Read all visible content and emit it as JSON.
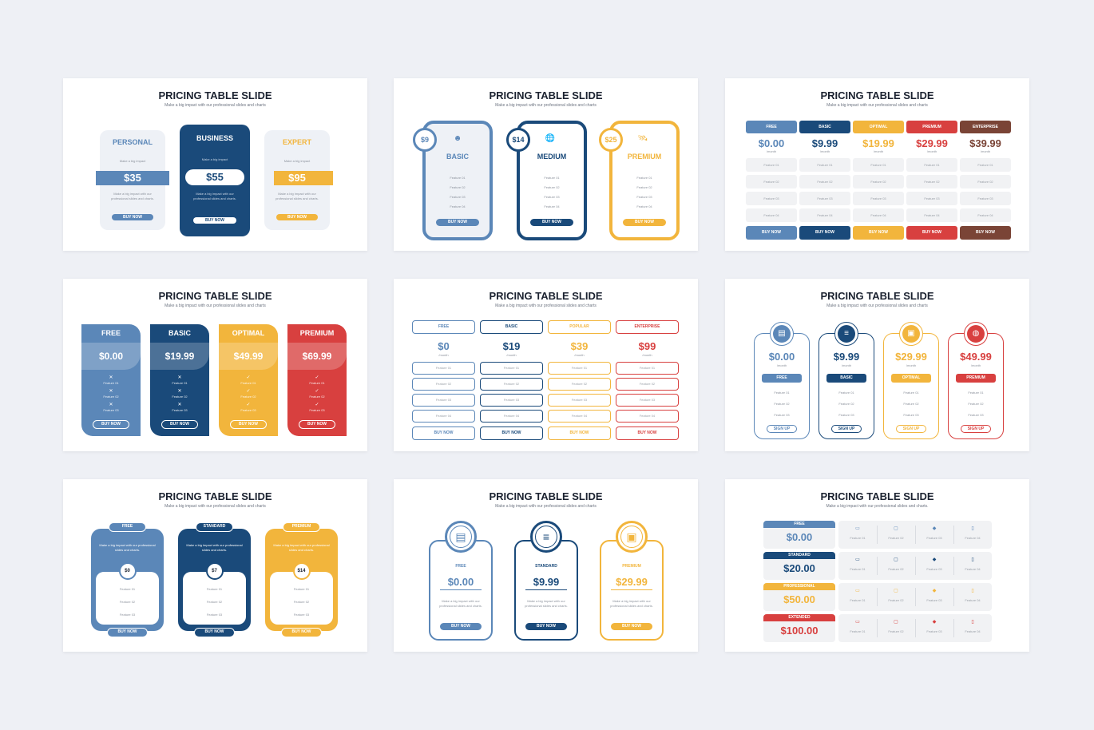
{
  "slide_title": "PRICING TABLE SLIDE",
  "slide_subtitle": "Make a big impact with our professional slides and charts",
  "colors": {
    "blue": "#5b87b8",
    "navy": "#1a4a7a",
    "yellow": "#f2b53c",
    "red": "#d8403f",
    "brown": "#7a4436",
    "lightbg": "#eef0f5"
  },
  "s1": {
    "cards": [
      {
        "name": "PERSONAL",
        "desc": "Make a big impact",
        "price": "$35",
        "text": "Make a big impact with our professional slides and charts.",
        "btn": "BUY NOW"
      },
      {
        "name": "BUSINESS",
        "desc": "Make a big impact",
        "price": "$55",
        "text": "Make a big impact with our professional slides and charts.",
        "btn": "BUY NOW"
      },
      {
        "name": "EXPERT",
        "desc": "Make a big impact",
        "price": "$95",
        "text": "Make a big impact with our professional slides and charts.",
        "btn": "BUY NOW"
      }
    ]
  },
  "s2": {
    "cards": [
      {
        "price": "$9",
        "name": "BASIC",
        "icon": "user-icon",
        "features": [
          "Feature 01",
          "Feature 02",
          "Feature 03",
          "Feature 04"
        ],
        "btn": "BUY NOW"
      },
      {
        "price": "$14",
        "name": "MEDIUM",
        "icon": "globe-icon",
        "features": [
          "Feature 01",
          "Feature 02",
          "Feature 03",
          "Feature 04"
        ],
        "btn": "BUY NOW"
      },
      {
        "price": "$25",
        "name": "PREMIUM",
        "icon": "satellite-icon",
        "features": [
          "Feature 01",
          "Feature 02",
          "Feature 03",
          "Feature 04"
        ],
        "btn": "BUY NOW"
      }
    ]
  },
  "s3": {
    "cols": [
      {
        "name": "FREE",
        "price": "$0.00",
        "per": "/month",
        "features": [
          "Feature 01",
          "Feature 02",
          "Feature 03",
          "Feature 04"
        ],
        "btn": "BUY NOW"
      },
      {
        "name": "BASIC",
        "price": "$9.99",
        "per": "/month",
        "features": [
          "Feature 01",
          "Feature 02",
          "Feature 03",
          "Feature 04"
        ],
        "btn": "BUY NOW"
      },
      {
        "name": "OPTIMAL",
        "price": "$19.99",
        "per": "/month",
        "features": [
          "Feature 01",
          "Feature 02",
          "Feature 03",
          "Feature 04"
        ],
        "btn": "BUY NOW"
      },
      {
        "name": "PREMIUM",
        "price": "$29.99",
        "per": "/month",
        "features": [
          "Feature 01",
          "Feature 02",
          "Feature 03",
          "Feature 04"
        ],
        "btn": "BUY NOW"
      },
      {
        "name": "ENTERPRISE",
        "price": "$39.99",
        "per": "/month",
        "features": [
          "Feature 01",
          "Feature 02",
          "Feature 03",
          "Feature 04"
        ],
        "btn": "BUY NOW"
      }
    ]
  },
  "s4": {
    "cards": [
      {
        "name": "FREE",
        "price": "$0.00",
        "features": [
          "Feature 01",
          "Feature 02",
          "Feature 03"
        ],
        "btn": "BUY NOW"
      },
      {
        "name": "BASIC",
        "price": "$19.99",
        "features": [
          "Feature 01",
          "Feature 02",
          "Feature 03"
        ],
        "btn": "BUY NOW"
      },
      {
        "name": "OPTIMAL",
        "price": "$49.99",
        "features": [
          "Feature 01",
          "Feature 02",
          "Feature 03"
        ],
        "btn": "BUY NOW"
      },
      {
        "name": "PREMIUM",
        "price": "$69.99",
        "features": [
          "Feature 01",
          "Feature 02",
          "Feature 03"
        ],
        "btn": "BUY NOW"
      }
    ]
  },
  "s5": {
    "cols": [
      {
        "name": "FREE",
        "price": "$0",
        "per": "/month",
        "features": [
          "Feature 01",
          "Feature 02",
          "Feature 03",
          "Feature 04"
        ],
        "btn": "BUY NOW"
      },
      {
        "name": "BASIC",
        "price": "$19",
        "per": "/month",
        "features": [
          "Feature 01",
          "Feature 02",
          "Feature 03",
          "Feature 04"
        ],
        "btn": "BUY NOW"
      },
      {
        "name": "POPULAR",
        "price": "$39",
        "per": "/month",
        "features": [
          "Feature 01",
          "Feature 02",
          "Feature 03",
          "Feature 04"
        ],
        "btn": "BUY NOW"
      },
      {
        "name": "ENTERPRISE",
        "price": "$99",
        "per": "/month",
        "features": [
          "Feature 01",
          "Feature 02",
          "Feature 03",
          "Feature 04"
        ],
        "btn": "BUY NOW"
      }
    ]
  },
  "s6": {
    "cards": [
      {
        "price": "$0.00",
        "per": "/month",
        "name": "FREE",
        "features": [
          "Feature 01",
          "Feature 02",
          "Feature 03"
        ],
        "btn": "SIGN UP"
      },
      {
        "price": "$9.99",
        "per": "/month",
        "name": "BASIC",
        "features": [
          "Feature 01",
          "Feature 02",
          "Feature 03"
        ],
        "btn": "SIGN UP"
      },
      {
        "price": "$29.99",
        "per": "/month",
        "name": "OPTIMAL",
        "features": [
          "Feature 01",
          "Feature 02",
          "Feature 03"
        ],
        "btn": "SIGN UP"
      },
      {
        "price": "$49.99",
        "per": "/month",
        "name": "PREMIUM",
        "features": [
          "Feature 01",
          "Feature 02",
          "Feature 03"
        ],
        "btn": "SIGN UP"
      }
    ]
  },
  "s7": {
    "cards": [
      {
        "name": "FREE",
        "text": "Make a big impact with our professional slides and charts.",
        "price": "$0",
        "features": [
          "Feature 01",
          "Feature 02",
          "Feature 03"
        ],
        "btn": "BUY NOW"
      },
      {
        "name": "STANDARD",
        "text": "Make a big impact with our professional slides and charts.",
        "price": "$7",
        "features": [
          "Feature 01",
          "Feature 02",
          "Feature 03"
        ],
        "btn": "BUY NOW"
      },
      {
        "name": "PREMIUM",
        "text": "Make a big impact with our professional slides and charts.",
        "price": "$14",
        "features": [
          "Feature 01",
          "Feature 02",
          "Feature 03"
        ],
        "btn": "BUY NOW"
      }
    ]
  },
  "s8": {
    "cards": [
      {
        "name": "FREE",
        "price": "$0.00",
        "text": "Make a big impact with our professional slides and charts.",
        "btn": "BUY NOW"
      },
      {
        "name": "STANDARD",
        "price": "$9.99",
        "text": "Make a big impact with our professional slides and charts.",
        "btn": "BUY NOW"
      },
      {
        "name": "PREMIUM",
        "price": "$29.99",
        "text": "Make a big impact with our professional slides and charts.",
        "btn": "BUY NOW"
      }
    ]
  },
  "s9": {
    "subtitle": "Make a big impact with our professional slides and charts.",
    "rows": [
      {
        "name": "FREE",
        "price": "$0.00",
        "features": [
          "Feature 01",
          "Feature 02",
          "Feature 03",
          "Feature 04"
        ]
      },
      {
        "name": "STANDARD",
        "price": "$20.00",
        "features": [
          "Feature 01",
          "Feature 02",
          "Feature 03",
          "Feature 04"
        ]
      },
      {
        "name": "PROFESSIONAL",
        "price": "$50.00",
        "features": [
          "Feature 01",
          "Feature 02",
          "Feature 03",
          "Feature 04"
        ]
      },
      {
        "name": "EXTENDED",
        "price": "$100.00",
        "features": [
          "Feature 01",
          "Feature 02",
          "Feature 03",
          "Feature 04"
        ]
      }
    ]
  }
}
